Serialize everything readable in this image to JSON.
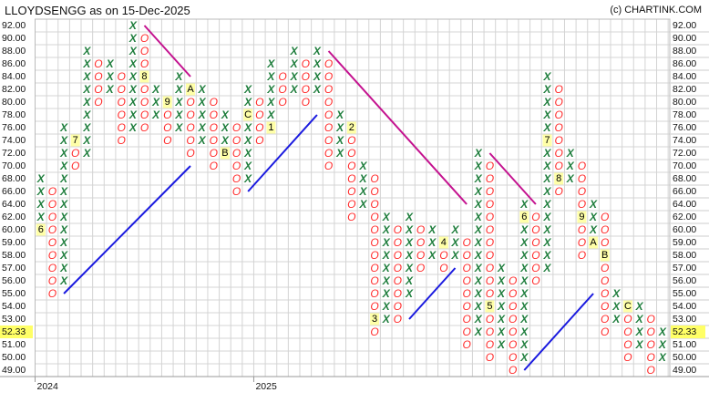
{
  "header": {
    "title": "LLOYDSENGG as on 15-Dec-2025",
    "copyright": "(c) CHARTINK.COM"
  },
  "chart_data": {
    "type": "point_and_figure",
    "symbol": "LLOYDSENGG",
    "current_price": "52.33",
    "price_levels": [
      92,
      90,
      88,
      86,
      84,
      82,
      80,
      78,
      76,
      74,
      72,
      70,
      68,
      66,
      64,
      62,
      60,
      59,
      58,
      57,
      56,
      55,
      54,
      53,
      52,
      51,
      50,
      49
    ],
    "y_tick_labels": [
      "92.00",
      "90.00",
      "88.00",
      "86.00",
      "84.00",
      "82.00",
      "80.00",
      "78.00",
      "76.00",
      "74.00",
      "72.00",
      "70.00",
      "68.00",
      "66.00",
      "64.00",
      "62.00",
      "60.00",
      "59.00",
      "58.00",
      "57.00",
      "56.00",
      "55.00",
      "54.00",
      "53.00",
      "52.00",
      "51.00",
      "50.00",
      "49.00"
    ],
    "x_tick_labels": [
      {
        "label": "2024",
        "col": 1
      },
      {
        "label": "2025",
        "col": 20
      }
    ],
    "grid": true,
    "colors": {
      "x": "#1e7d3c",
      "o": "#ff2a2a",
      "uptrend": "#1a1adf",
      "downtrend": "#c4128f",
      "month_bg": "#ffffa8",
      "price_bg": "#ffff66"
    },
    "columns": [
      {
        "t": "X",
        "hi": 68,
        "lo": 60,
        "m": {
          "60": "6"
        }
      },
      {
        "t": "O",
        "hi": 66,
        "lo": 55
      },
      {
        "t": "X",
        "hi": 76,
        "lo": 56
      },
      {
        "t": "O",
        "hi": 74,
        "lo": 70,
        "m": {
          "74": "7"
        }
      },
      {
        "t": "X",
        "hi": 88,
        "lo": 72
      },
      {
        "t": "O",
        "hi": 86,
        "lo": 80
      },
      {
        "t": "X",
        "hi": 86,
        "lo": 82
      },
      {
        "t": "O",
        "hi": 84,
        "lo": 74
      },
      {
        "t": "X",
        "hi": 92,
        "lo": 76
      },
      {
        "t": "O",
        "hi": 90,
        "lo": 76,
        "m": {
          "84": "8"
        }
      },
      {
        "t": "X",
        "hi": 82,
        "lo": 78
      },
      {
        "t": "O",
        "hi": 80,
        "lo": 74,
        "m": {
          "80": "9"
        }
      },
      {
        "t": "X",
        "hi": 84,
        "lo": 76
      },
      {
        "t": "O",
        "hi": 82,
        "lo": 72,
        "m": {
          "82": "A"
        }
      },
      {
        "t": "X",
        "hi": 82,
        "lo": 74
      },
      {
        "t": "O",
        "hi": 80,
        "lo": 70
      },
      {
        "t": "X",
        "hi": 78,
        "lo": 72,
        "m": {
          "72": "B"
        }
      },
      {
        "t": "O",
        "hi": 76,
        "lo": 66
      },
      {
        "t": "X",
        "hi": 82,
        "lo": 68,
        "m": {
          "78": "C"
        }
      },
      {
        "t": "O",
        "hi": 80,
        "lo": 74
      },
      {
        "t": "X",
        "hi": 86,
        "lo": 76,
        "m": {
          "76": "1"
        }
      },
      {
        "t": "O",
        "hi": 84,
        "lo": 80
      },
      {
        "t": "X",
        "hi": 88,
        "lo": 82
      },
      {
        "t": "O",
        "hi": 86,
        "lo": 80
      },
      {
        "t": "X",
        "hi": 88,
        "lo": 82
      },
      {
        "t": "O",
        "hi": 86,
        "lo": 70
      },
      {
        "t": "X",
        "hi": 78,
        "lo": 72
      },
      {
        "t": "O",
        "hi": 76,
        "lo": 62,
        "m": {
          "76": "2"
        }
      },
      {
        "t": "X",
        "hi": 70,
        "lo": 64
      },
      {
        "t": "O",
        "hi": 68,
        "lo": 52,
        "m": {
          "53": "3"
        }
      },
      {
        "t": "X",
        "hi": 62,
        "lo": 53
      },
      {
        "t": "O",
        "hi": 60,
        "lo": 53
      },
      {
        "t": "X",
        "hi": 62,
        "lo": 55
      },
      {
        "t": "O",
        "hi": 60,
        "lo": 57
      },
      {
        "t": "X",
        "hi": 60,
        "lo": 58
      },
      {
        "t": "O",
        "hi": 59,
        "lo": 57,
        "m": {
          "59": "4"
        }
      },
      {
        "t": "X",
        "hi": 60,
        "lo": 58
      },
      {
        "t": "O",
        "hi": 59,
        "lo": 51
      },
      {
        "t": "X",
        "hi": 72,
        "lo": 52
      },
      {
        "t": "O",
        "hi": 70,
        "lo": 50,
        "m": {
          "54": "5"
        }
      },
      {
        "t": "X",
        "hi": 57,
        "lo": 51
      },
      {
        "t": "O",
        "hi": 56,
        "lo": 49
      },
      {
        "t": "X",
        "hi": 64,
        "lo": 50,
        "m": {
          "62": "6"
        }
      },
      {
        "t": "O",
        "hi": 62,
        "lo": 56
      },
      {
        "t": "X",
        "hi": 84,
        "lo": 57,
        "m": {
          "74": "7"
        }
      },
      {
        "t": "O",
        "hi": 82,
        "lo": 66,
        "m": {
          "68": "8"
        }
      },
      {
        "t": "X",
        "hi": 72,
        "lo": 68
      },
      {
        "t": "O",
        "hi": 70,
        "lo": 58,
        "m": {
          "62": "9"
        }
      },
      {
        "t": "X",
        "hi": 64,
        "lo": 59,
        "m": {
          "59": "A"
        }
      },
      {
        "t": "O",
        "hi": 62,
        "lo": 52,
        "m": {
          "58": "B"
        }
      },
      {
        "t": "X",
        "hi": 55,
        "lo": 53
      },
      {
        "t": "O",
        "hi": 54,
        "lo": 50,
        "m": {
          "54": "C"
        }
      },
      {
        "t": "X",
        "hi": 54,
        "lo": 51
      },
      {
        "t": "O",
        "hi": 53,
        "lo": 49
      },
      {
        "t": "X",
        "hi": 52,
        "lo": 50
      }
    ],
    "trend_lines": [
      {
        "kind": "up",
        "from": {
          "col": 3,
          "price": 55
        },
        "to": {
          "col": 14,
          "price": 70
        }
      },
      {
        "kind": "down",
        "from": {
          "col": 10,
          "price": 92
        },
        "to": {
          "col": 14,
          "price": 84
        }
      },
      {
        "kind": "up",
        "from": {
          "col": 19,
          "price": 66
        },
        "to": {
          "col": 25,
          "price": 78
        }
      },
      {
        "kind": "down",
        "from": {
          "col": 26,
          "price": 88
        },
        "to": {
          "col": 38,
          "price": 64
        }
      },
      {
        "kind": "up",
        "from": {
          "col": 33,
          "price": 53
        },
        "to": {
          "col": 37,
          "price": 57
        }
      },
      {
        "kind": "down",
        "from": {
          "col": 40,
          "price": 72
        },
        "to": {
          "col": 44,
          "price": 64
        }
      },
      {
        "kind": "up",
        "from": {
          "col": 43,
          "price": 49
        },
        "to": {
          "col": 49,
          "price": 55
        }
      }
    ]
  }
}
